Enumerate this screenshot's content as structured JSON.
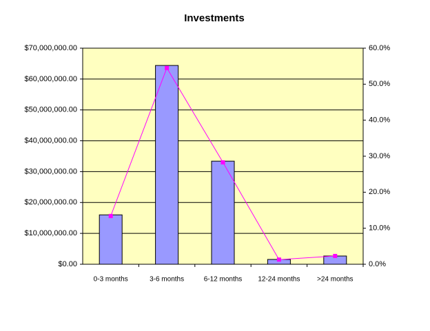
{
  "chart_data": {
    "type": "bar-line",
    "title": "Investments",
    "categories": [
      "0-3 months",
      "3-6 months",
      "6-12 months",
      "12-24 months",
      ">24 months"
    ],
    "series": [
      {
        "type": "bar",
        "color": "#9999ff",
        "values": [
          16000000,
          64400000,
          33400000,
          1560000,
          2670000
        ]
      },
      {
        "type": "line",
        "color": "#ff00ff",
        "axis": "y2",
        "values": [
          13.4,
          54.5,
          28.3,
          1.3,
          2.3
        ]
      }
    ],
    "ylim": [
      0,
      70000000
    ],
    "yticks": [
      {
        "value": 0,
        "label": "$0.00"
      },
      {
        "value": 10000000,
        "label": "$10,000,000.00"
      },
      {
        "value": 20000000,
        "label": "$20,000,000.00"
      },
      {
        "value": 30000000,
        "label": "$30,000,000.00"
      },
      {
        "value": 40000000,
        "label": "$40,000,000.00"
      },
      {
        "value": 50000000,
        "label": "$50,000,000.00"
      },
      {
        "value": 60000000,
        "label": "$60,000,000.00"
      },
      {
        "value": 70000000,
        "label": "$70,000,000.00"
      }
    ],
    "y2lim": [
      0,
      60
    ],
    "y2ticks": [
      {
        "value": 0,
        "label": "0.0%"
      },
      {
        "value": 10,
        "label": "10.0%"
      },
      {
        "value": 20,
        "label": "20.0%"
      },
      {
        "value": 30,
        "label": "30.0%"
      },
      {
        "value": 40,
        "label": "40.0%"
      },
      {
        "value": 50,
        "label": "50.0%"
      },
      {
        "value": 60,
        "label": "60.0%"
      }
    ],
    "grid": true,
    "plot_background": "#ffffc0"
  }
}
